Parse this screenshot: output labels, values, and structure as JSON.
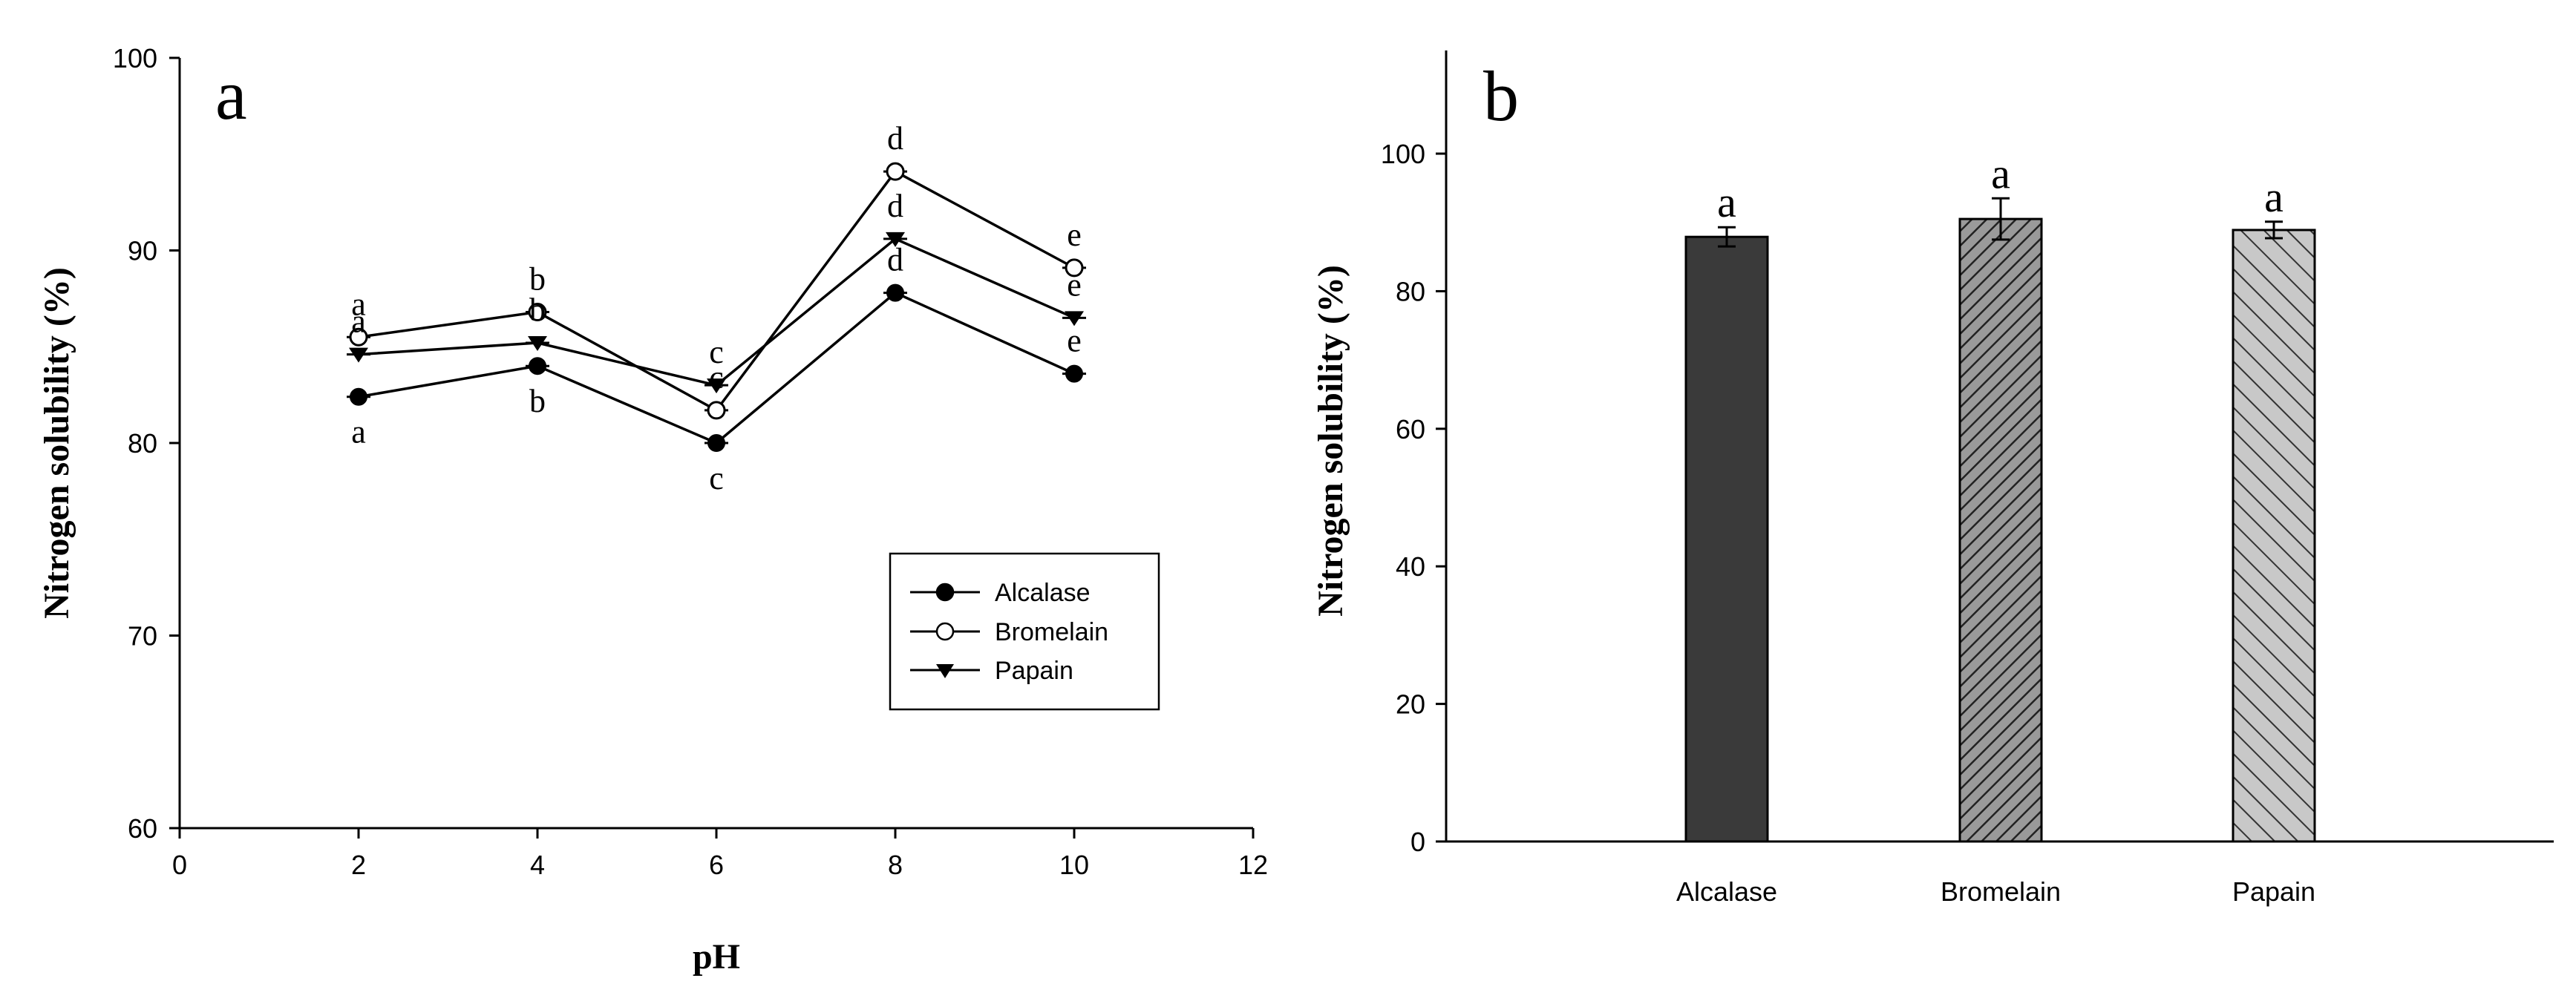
{
  "chart_data": [
    {
      "panel_label": "a",
      "type": "line",
      "xlabel": "pH",
      "ylabel": "Nitrogen solubility (%)",
      "xlim": [
        0,
        12
      ],
      "ylim": [
        60,
        100
      ],
      "xticks": [
        "0",
        "2",
        "4",
        "6",
        "8",
        "10",
        "12"
      ],
      "yticks": [
        "60",
        "70",
        "80",
        "90",
        "100"
      ],
      "x": [
        2,
        4,
        6,
        8,
        10
      ],
      "legend_position": "lower-right",
      "series": [
        {
          "name": "Alcalase",
          "marker": "filled-circle",
          "values": [
            82.4,
            84.0,
            80.0,
            87.8,
            83.6
          ],
          "letters": [
            "a",
            "b",
            "c",
            "d",
            "e"
          ]
        },
        {
          "name": "Bromelain",
          "marker": "open-circle",
          "values": [
            85.5,
            86.8,
            81.7,
            94.1,
            89.1
          ],
          "letters": [
            "a",
            "b",
            "c",
            "d",
            "e"
          ]
        },
        {
          "name": "Papain",
          "marker": "filled-triangle-down",
          "values": [
            84.6,
            85.2,
            83.0,
            90.6,
            86.5
          ],
          "letters": [
            "a",
            "b",
            "c",
            "d",
            "e"
          ]
        }
      ]
    },
    {
      "panel_label": "b",
      "type": "bar",
      "xlabel": "",
      "ylabel": "Nitrogen solubility (%)",
      "ylim": [
        0,
        115
      ],
      "yticks": [
        "0",
        "20",
        "40",
        "60",
        "80",
        "100"
      ],
      "categories": [
        "Alcalase",
        "Bromelain",
        "Papain"
      ],
      "values": [
        87.9,
        90.5,
        88.9
      ],
      "errors": [
        1.4,
        3.0,
        1.2
      ],
      "letters": [
        "a",
        "a",
        "a"
      ],
      "fills": [
        "#3a3a3a",
        "hatch-dense",
        "hatch-light"
      ]
    }
  ]
}
